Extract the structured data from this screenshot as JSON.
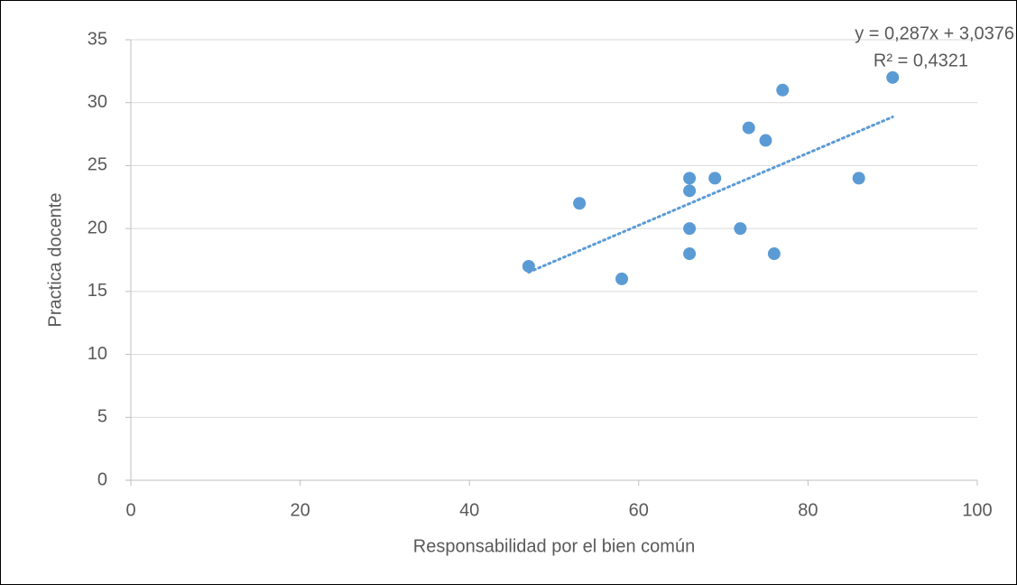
{
  "chart_data": {
    "type": "scatter",
    "x_label": "Responsabilidad por el bien común",
    "y_label": "Practica docente",
    "series": [
      {
        "name": "Practica docente",
        "color": "#5b9bd5",
        "x": [
          47,
          53,
          58,
          66,
          66,
          66,
          66,
          69,
          72,
          73,
          75,
          76,
          77,
          86,
          90
        ],
        "values": [
          17,
          22,
          16,
          24,
          23,
          20,
          18,
          24,
          20,
          28,
          27,
          18,
          31,
          24,
          32
        ]
      }
    ],
    "trendline": {
      "slope": 0.287,
      "intercept": 3.0376,
      "color": "#5b9bd5",
      "equation": "y = 0,287x + 3,0376",
      "r2": "R² = 0,4321"
    },
    "xlim": [
      0,
      100
    ],
    "xticks": [
      0,
      20,
      40,
      60,
      80,
      100
    ],
    "ylim": [
      0,
      35
    ],
    "yticks": [
      0,
      5,
      10,
      15,
      20,
      25,
      30,
      35
    ],
    "grid": true
  }
}
